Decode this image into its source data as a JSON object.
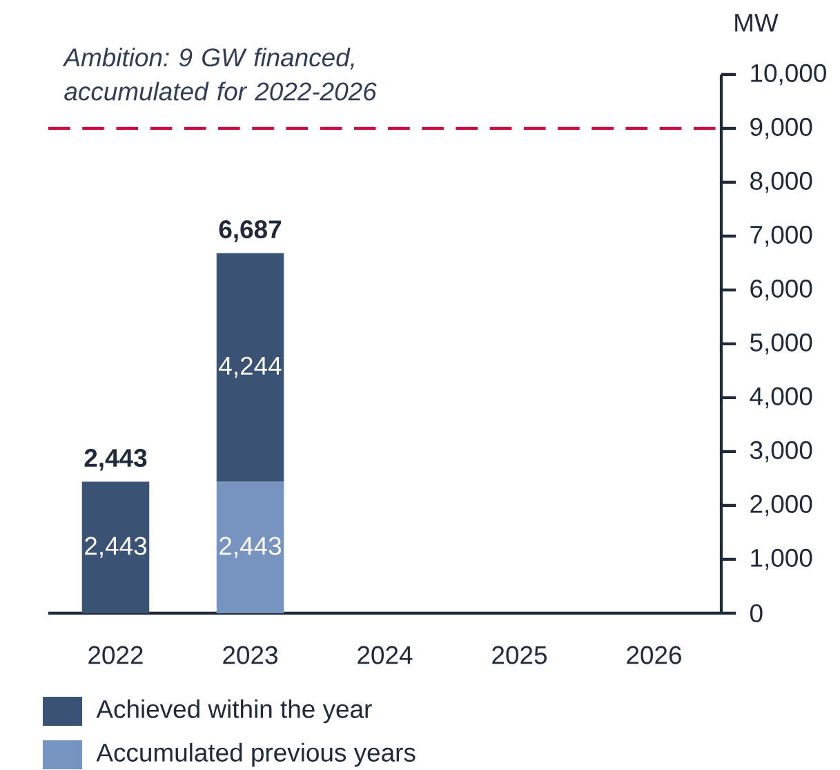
{
  "chart_data": {
    "type": "bar",
    "stacked": true,
    "ylabel": "MW",
    "categories": [
      "2022",
      "2023",
      "2024",
      "2025",
      "2026"
    ],
    "series": [
      {
        "name": "Accumulated previous years",
        "color": "#7694bf",
        "values": [
          null,
          2443,
          null,
          null,
          null
        ],
        "value_labels": [
          null,
          "2,443",
          null,
          null,
          null
        ]
      },
      {
        "name": "Achieved within the year",
        "color": "#3a5273",
        "values": [
          2443,
          4244,
          null,
          null,
          null
        ],
        "value_labels": [
          "2,443",
          "4,244",
          null,
          null,
          null
        ]
      }
    ],
    "totals": [
      "2,443",
      "6,687",
      null,
      null,
      null
    ],
    "ylim": [
      0,
      10000
    ],
    "yticks": [
      0,
      {
        "value": 1000,
        "label": "1,000"
      },
      {
        "value": 2000,
        "label": "2,000"
      },
      {
        "value": 3000,
        "label": "3,000"
      },
      {
        "value": 4000,
        "label": "4,000"
      },
      {
        "value": 5000,
        "label": "5,000"
      },
      {
        "value": 6000,
        "label": "6,000"
      },
      {
        "value": 7000,
        "label": "7,000"
      },
      {
        "value": 8000,
        "label": "8,000"
      },
      {
        "value": 9000,
        "label": "9,000"
      },
      {
        "value": 10000,
        "label": "10,000"
      }
    ],
    "ref_lines": [
      {
        "axis": "y",
        "value": 9000,
        "color": "#c8103e",
        "line_style": "dashed"
      }
    ],
    "annotations": [
      "Ambition: 9 GW financed, accumulated for 2022-2026"
    ],
    "legend": "bottom"
  }
}
